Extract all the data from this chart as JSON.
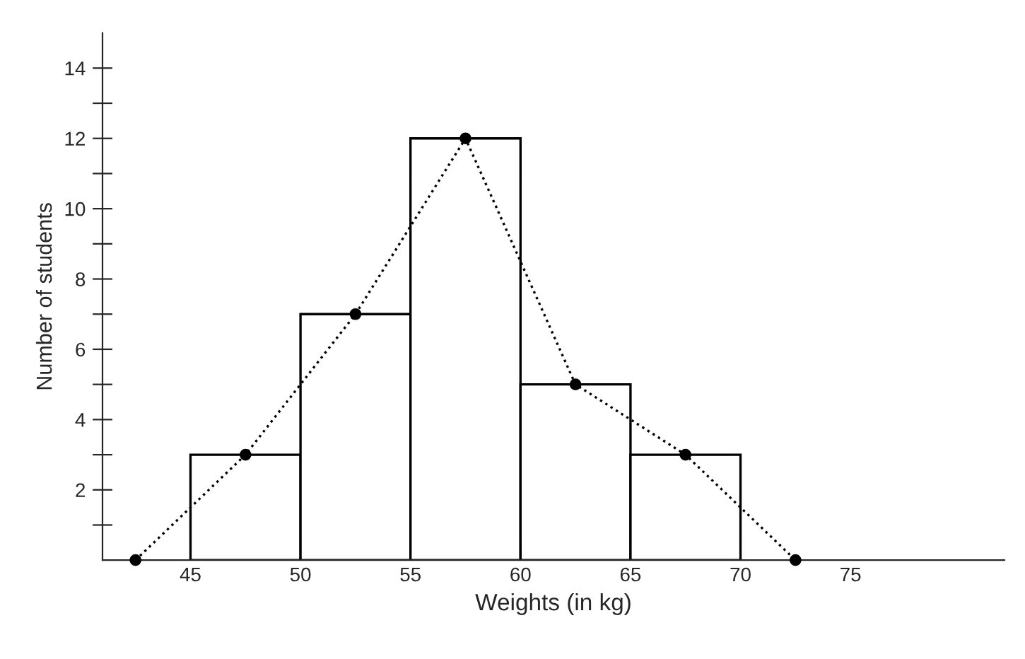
{
  "chart_data": {
    "type": "histogram",
    "xlabel": "Weights (in kg)",
    "ylabel": "Number of students",
    "bins": [
      45,
      50,
      55,
      60,
      65,
      70
    ],
    "values": [
      3,
      7,
      12,
      5,
      3
    ],
    "color": "#ffffff",
    "series": [
      {
        "type": "line",
        "x": [
          42.5,
          47.5,
          52.5,
          57.5,
          62.5,
          67.5,
          72.5
        ],
        "values": [
          0,
          3,
          7,
          12,
          5,
          3,
          0
        ],
        "color": "#000000",
        "marker": "circle",
        "line_style": "dotted"
      }
    ],
    "xlim": [
      41,
      82
    ],
    "ylim": [
      0,
      15
    ],
    "xticks": [
      45,
      50,
      55,
      60,
      65,
      70,
      75
    ],
    "yticks": [
      {
        "value": 1,
        "label": null
      },
      2,
      {
        "value": 3,
        "label": null
      },
      4,
      {
        "value": 5,
        "label": null
      },
      6,
      {
        "value": 7,
        "label": null
      },
      8,
      {
        "value": 9,
        "label": null
      },
      10,
      {
        "value": 11,
        "label": null
      },
      12,
      {
        "value": 13,
        "label": null
      },
      14
    ],
    "grid": false,
    "legend": false
  }
}
